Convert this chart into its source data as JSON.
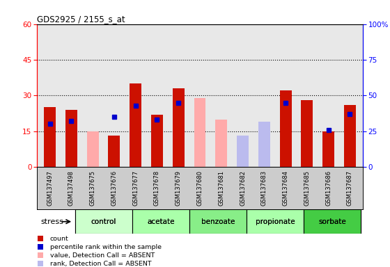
{
  "title": "GDS2925 / 2155_s_at",
  "samples": [
    "GSM137497",
    "GSM137498",
    "GSM137675",
    "GSM137676",
    "GSM137677",
    "GSM137678",
    "GSM137679",
    "GSM137680",
    "GSM137681",
    "GSM137682",
    "GSM137683",
    "GSM137684",
    "GSM137685",
    "GSM137686",
    "GSM137687"
  ],
  "groups": [
    {
      "name": "control",
      "indices": [
        0,
        1,
        2
      ],
      "color": "#ccffcc"
    },
    {
      "name": "acetate",
      "indices": [
        3,
        4,
        5
      ],
      "color": "#aaffaa"
    },
    {
      "name": "benzoate",
      "indices": [
        6,
        7,
        8
      ],
      "color": "#88ee88"
    },
    {
      "name": "propionate",
      "indices": [
        9,
        10,
        11
      ],
      "color": "#aaffaa"
    },
    {
      "name": "sorbate",
      "indices": [
        12,
        13,
        14
      ],
      "color": "#44cc44"
    }
  ],
  "count": [
    25,
    24,
    null,
    13,
    35,
    22,
    33,
    null,
    null,
    null,
    null,
    32,
    28,
    15,
    26
  ],
  "percentile_rank": [
    30,
    32,
    null,
    35,
    43,
    33,
    45,
    null,
    null,
    null,
    null,
    45,
    null,
    26,
    37
  ],
  "value_absent": [
    null,
    null,
    15,
    null,
    null,
    null,
    null,
    29,
    20,
    11,
    null,
    null,
    null,
    null,
    null
  ],
  "rank_absent": [
    null,
    null,
    null,
    null,
    null,
    null,
    null,
    null,
    null,
    13,
    19,
    null,
    null,
    null,
    null
  ],
  "left_ylim": [
    0,
    60
  ],
  "right_ylim": [
    0,
    100
  ],
  "left_yticks": [
    0,
    15,
    30,
    45,
    60
  ],
  "right_yticks": [
    0,
    25,
    50,
    75,
    100
  ],
  "plot_bg": "#e8e8e8",
  "count_color": "#cc1100",
  "rank_color": "#0000cc",
  "value_absent_color": "#ffaaaa",
  "rank_absent_color": "#bbbbee",
  "stress_label": "stress",
  "bar_width": 0.55
}
